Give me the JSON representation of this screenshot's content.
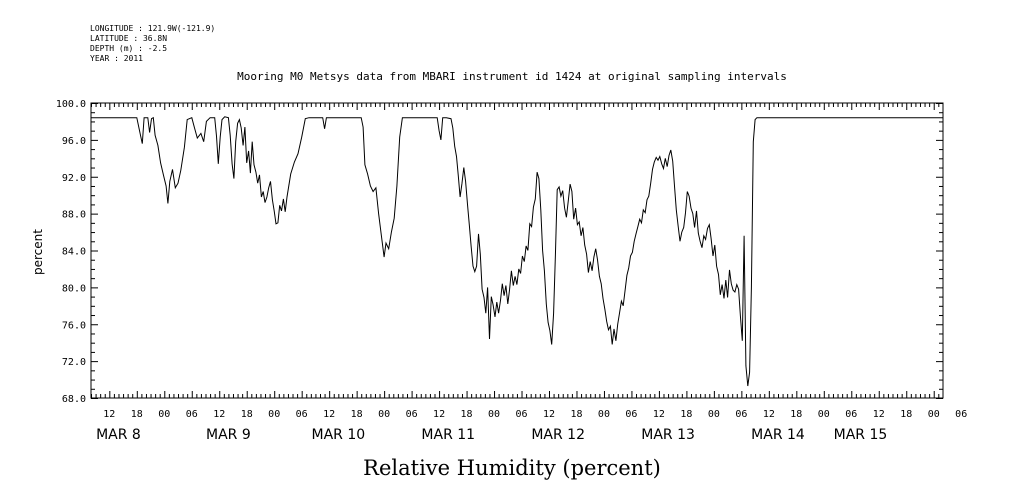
{
  "meta": {
    "longitude": "LONGITUDE : 121.9W(-121.9)",
    "latitude": "LATITUDE : 36.8N",
    "depth": "DEPTH (m) : -2.5",
    "year": "YEAR : 2011"
  },
  "chart_data": {
    "type": "line",
    "title": "Mooring M0 Metsys data from MBARI instrument id 1424 at original sampling intervals",
    "xlabel": "Relative Humidity (percent)",
    "ylabel": "percent",
    "ylim": [
      68,
      100
    ],
    "yticks": [
      "68.0",
      "72.0",
      "76.0",
      "80.0",
      "84.0",
      "88.0",
      "92.0",
      "96.0",
      "100.0"
    ],
    "xlim_hours": [
      0,
      186
    ],
    "hour_ticks": [
      {
        "h": 4,
        "label": "12"
      },
      {
        "h": 10,
        "label": "18"
      },
      {
        "h": 16,
        "label": "00"
      },
      {
        "h": 22,
        "label": "06"
      },
      {
        "h": 28,
        "label": "12"
      },
      {
        "h": 34,
        "label": "18"
      },
      {
        "h": 40,
        "label": "00"
      },
      {
        "h": 46,
        "label": "06"
      },
      {
        "h": 52,
        "label": "12"
      },
      {
        "h": 58,
        "label": "18"
      },
      {
        "h": 64,
        "label": "00"
      },
      {
        "h": 70,
        "label": "06"
      },
      {
        "h": 76,
        "label": "12"
      },
      {
        "h": 82,
        "label": "18"
      },
      {
        "h": 88,
        "label": "00"
      },
      {
        "h": 94,
        "label": "06"
      },
      {
        "h": 100,
        "label": "12"
      },
      {
        "h": 106,
        "label": "18"
      },
      {
        "h": 112,
        "label": "00"
      },
      {
        "h": 118,
        "label": "06"
      },
      {
        "h": 124,
        "label": "12"
      },
      {
        "h": 130,
        "label": "18"
      },
      {
        "h": 136,
        "label": "00"
      },
      {
        "h": 142,
        "label": "06"
      },
      {
        "h": 148,
        "label": "12"
      },
      {
        "h": 154,
        "label": "18"
      },
      {
        "h": 160,
        "label": "00"
      },
      {
        "h": 166,
        "label": "06"
      },
      {
        "h": 172,
        "label": "12"
      },
      {
        "h": 178,
        "label": "18"
      },
      {
        "h": 184,
        "label": "00"
      },
      {
        "h": 190,
        "label": "06"
      }
    ],
    "day_labels": [
      {
        "h": 6,
        "label": "MAR  8"
      },
      {
        "h": 30,
        "label": "MAR  9"
      },
      {
        "h": 54,
        "label": "MAR 10"
      },
      {
        "h": 78,
        "label": "MAR 11"
      },
      {
        "h": 102,
        "label": "MAR 12"
      },
      {
        "h": 126,
        "label": "MAR 13"
      },
      {
        "h": 150,
        "label": "MAR 14"
      },
      {
        "h": 168,
        "label": "MAR 15"
      }
    ],
    "series": [
      {
        "points": [
          [
            0.0,
            98.4
          ],
          [
            10.0,
            98.4
          ],
          [
            10.8,
            96.5
          ],
          [
            11.2,
            95.6
          ],
          [
            11.6,
            98.4
          ],
          [
            12.4,
            98.4
          ],
          [
            12.8,
            96.8
          ],
          [
            13.2,
            98.3
          ],
          [
            13.6,
            98.4
          ],
          [
            14.0,
            96.5
          ],
          [
            14.6,
            95.4
          ],
          [
            15.2,
            93.5
          ],
          [
            15.8,
            92.2
          ],
          [
            16.4,
            91.0
          ],
          [
            16.8,
            89.1
          ],
          [
            17.2,
            91.5
          ],
          [
            17.8,
            92.8
          ],
          [
            18.4,
            90.8
          ],
          [
            19.0,
            91.3
          ],
          [
            19.6,
            92.7
          ],
          [
            20.4,
            95.2
          ],
          [
            21.0,
            98.2
          ],
          [
            22.0,
            98.4
          ],
          [
            22.6,
            97.3
          ],
          [
            23.2,
            96.2
          ],
          [
            24.0,
            96.7
          ],
          [
            24.6,
            95.8
          ],
          [
            25.2,
            98.0
          ],
          [
            26.0,
            98.4
          ],
          [
            27.0,
            98.4
          ],
          [
            27.4,
            96.4
          ],
          [
            27.8,
            93.4
          ],
          [
            28.2,
            96.3
          ],
          [
            28.6,
            98.2
          ],
          [
            29.2,
            98.5
          ],
          [
            30.0,
            98.4
          ],
          [
            30.4,
            96.5
          ],
          [
            30.8,
            93.4
          ],
          [
            31.2,
            91.8
          ],
          [
            31.6,
            95.8
          ],
          [
            32.0,
            97.8
          ],
          [
            32.4,
            98.2
          ],
          [
            32.8,
            97.3
          ],
          [
            33.2,
            95.4
          ],
          [
            33.6,
            97.4
          ],
          [
            34.0,
            93.5
          ],
          [
            34.4,
            94.8
          ],
          [
            34.8,
            92.4
          ],
          [
            35.2,
            95.8
          ],
          [
            35.6,
            93.3
          ],
          [
            36.0,
            92.5
          ],
          [
            36.4,
            91.3
          ],
          [
            36.8,
            92.2
          ],
          [
            37.2,
            89.8
          ],
          [
            37.6,
            90.4
          ],
          [
            38.0,
            89.2
          ],
          [
            38.4,
            89.8
          ],
          [
            38.8,
            90.8
          ],
          [
            39.2,
            91.5
          ],
          [
            39.6,
            89.5
          ],
          [
            40.0,
            88.3
          ],
          [
            40.4,
            86.9
          ],
          [
            40.8,
            87.0
          ],
          [
            41.2,
            88.9
          ],
          [
            41.6,
            88.3
          ],
          [
            42.0,
            89.6
          ],
          [
            42.4,
            88.2
          ],
          [
            42.8,
            89.8
          ],
          [
            43.6,
            92.3
          ],
          [
            44.4,
            93.6
          ],
          [
            45.2,
            94.5
          ],
          [
            46.0,
            96.3
          ],
          [
            46.8,
            98.3
          ],
          [
            47.6,
            98.4
          ],
          [
            50.6,
            98.4
          ],
          [
            51.0,
            97.2
          ],
          [
            51.4,
            98.4
          ],
          [
            52.0,
            98.4
          ],
          [
            59.0,
            98.4
          ],
          [
            59.4,
            97.4
          ],
          [
            59.8,
            93.3
          ],
          [
            60.4,
            92.3
          ],
          [
            61.0,
            91.0
          ],
          [
            61.6,
            90.4
          ],
          [
            62.2,
            90.8
          ],
          [
            62.8,
            88.0
          ],
          [
            63.4,
            85.6
          ],
          [
            64.0,
            83.3
          ],
          [
            64.4,
            84.8
          ],
          [
            65.0,
            84.2
          ],
          [
            65.6,
            86.0
          ],
          [
            66.2,
            87.5
          ],
          [
            66.8,
            91.0
          ],
          [
            67.4,
            96.3
          ],
          [
            68.0,
            98.4
          ],
          [
            75.6,
            98.4
          ],
          [
            76.0,
            97.0
          ],
          [
            76.4,
            96.0
          ],
          [
            76.8,
            98.4
          ],
          [
            77.6,
            98.4
          ],
          [
            78.6,
            98.3
          ],
          [
            79.0,
            97.3
          ],
          [
            79.4,
            95.3
          ],
          [
            79.8,
            94.2
          ],
          [
            80.2,
            92.1
          ],
          [
            80.6,
            89.8
          ],
          [
            81.0,
            91.3
          ],
          [
            81.4,
            93.0
          ],
          [
            81.8,
            91.5
          ],
          [
            82.2,
            89.0
          ],
          [
            82.6,
            86.8
          ],
          [
            83.0,
            84.5
          ],
          [
            83.4,
            82.3
          ],
          [
            83.8,
            81.7
          ],
          [
            84.2,
            82.3
          ],
          [
            84.6,
            85.8
          ],
          [
            85.0,
            83.6
          ],
          [
            85.4,
            79.8
          ],
          [
            85.8,
            78.9
          ],
          [
            86.2,
            77.2
          ],
          [
            86.6,
            80.0
          ],
          [
            87.0,
            74.4
          ],
          [
            87.4,
            79.0
          ],
          [
            87.8,
            78.1
          ],
          [
            88.2,
            76.8
          ],
          [
            88.6,
            78.4
          ],
          [
            89.0,
            77.2
          ],
          [
            89.4,
            78.6
          ],
          [
            89.8,
            80.4
          ],
          [
            90.2,
            79.1
          ],
          [
            90.6,
            80.2
          ],
          [
            91.0,
            78.2
          ],
          [
            91.4,
            79.8
          ],
          [
            91.8,
            81.8
          ],
          [
            92.2,
            80.2
          ],
          [
            92.6,
            81.2
          ],
          [
            93.0,
            80.3
          ],
          [
            93.4,
            82.0
          ],
          [
            93.8,
            81.5
          ],
          [
            94.2,
            83.4
          ],
          [
            94.6,
            82.8
          ],
          [
            95.0,
            84.5
          ],
          [
            95.4,
            84.0
          ],
          [
            95.8,
            86.9
          ],
          [
            96.2,
            86.6
          ],
          [
            96.6,
            88.7
          ],
          [
            97.0,
            89.6
          ],
          [
            97.4,
            92.5
          ],
          [
            97.8,
            91.8
          ],
          [
            98.2,
            88.4
          ],
          [
            98.6,
            84.0
          ],
          [
            99.0,
            81.8
          ],
          [
            99.4,
            78.2
          ],
          [
            99.8,
            76.2
          ],
          [
            100.2,
            75.3
          ],
          [
            100.6,
            73.8
          ],
          [
            101.0,
            77.2
          ],
          [
            101.4,
            83.5
          ],
          [
            101.8,
            90.6
          ],
          [
            102.2,
            90.9
          ],
          [
            102.6,
            89.9
          ],
          [
            103.0,
            90.5
          ],
          [
            103.4,
            88.6
          ],
          [
            103.8,
            87.6
          ],
          [
            104.2,
            89.3
          ],
          [
            104.6,
            91.2
          ],
          [
            105.0,
            90.4
          ],
          [
            105.4,
            87.4
          ],
          [
            105.8,
            88.6
          ],
          [
            106.2,
            86.8
          ],
          [
            106.6,
            87.1
          ],
          [
            107.0,
            85.6
          ],
          [
            107.4,
            86.5
          ],
          [
            107.8,
            84.6
          ],
          [
            108.2,
            83.6
          ],
          [
            108.6,
            81.6
          ],
          [
            109.0,
            82.8
          ],
          [
            109.4,
            81.8
          ],
          [
            109.8,
            83.3
          ],
          [
            110.2,
            84.2
          ],
          [
            110.6,
            83.0
          ],
          [
            111.0,
            81.2
          ],
          [
            111.4,
            80.4
          ],
          [
            111.8,
            78.8
          ],
          [
            112.2,
            77.6
          ],
          [
            112.6,
            76.3
          ],
          [
            113.0,
            75.4
          ],
          [
            113.4,
            75.8
          ],
          [
            113.8,
            73.8
          ],
          [
            114.2,
            75.5
          ],
          [
            114.6,
            74.2
          ],
          [
            115.0,
            76.0
          ],
          [
            115.4,
            77.2
          ],
          [
            115.8,
            78.5
          ],
          [
            116.2,
            78.0
          ],
          [
            116.6,
            79.6
          ],
          [
            117.0,
            81.3
          ],
          [
            117.4,
            82.1
          ],
          [
            117.8,
            83.4
          ],
          [
            118.2,
            83.8
          ],
          [
            118.6,
            85.0
          ],
          [
            119.0,
            85.8
          ],
          [
            119.4,
            86.6
          ],
          [
            119.8,
            87.4
          ],
          [
            120.2,
            87.0
          ],
          [
            120.6,
            88.4
          ],
          [
            121.0,
            88.1
          ],
          [
            121.4,
            89.5
          ],
          [
            121.8,
            89.9
          ],
          [
            122.2,
            91.3
          ],
          [
            122.6,
            92.8
          ],
          [
            123.0,
            93.6
          ],
          [
            123.4,
            94.1
          ],
          [
            123.8,
            93.8
          ],
          [
            124.2,
            94.2
          ],
          [
            124.6,
            93.4
          ],
          [
            125.0,
            92.9
          ],
          [
            125.4,
            94.0
          ],
          [
            125.8,
            93.1
          ],
          [
            126.2,
            94.3
          ],
          [
            126.6,
            94.9
          ],
          [
            127.0,
            93.7
          ],
          [
            127.4,
            91.0
          ],
          [
            127.8,
            88.4
          ],
          [
            128.2,
            86.6
          ],
          [
            128.6,
            85.0
          ],
          [
            129.0,
            86.0
          ],
          [
            129.4,
            86.5
          ],
          [
            129.8,
            88.1
          ],
          [
            130.2,
            90.4
          ],
          [
            130.6,
            89.9
          ],
          [
            131.0,
            88.6
          ],
          [
            131.4,
            88.0
          ],
          [
            131.8,
            86.5
          ],
          [
            132.2,
            88.3
          ],
          [
            132.6,
            85.9
          ],
          [
            133.0,
            85.0
          ],
          [
            133.4,
            84.3
          ],
          [
            133.8,
            85.6
          ],
          [
            134.2,
            85.2
          ],
          [
            134.6,
            86.4
          ],
          [
            135.0,
            86.8
          ],
          [
            135.4,
            85.3
          ],
          [
            135.8,
            83.4
          ],
          [
            136.2,
            84.6
          ],
          [
            136.6,
            82.3
          ],
          [
            137.0,
            81.4
          ],
          [
            137.4,
            79.2
          ],
          [
            137.8,
            80.3
          ],
          [
            138.2,
            78.8
          ],
          [
            138.6,
            80.8
          ],
          [
            139.0,
            78.9
          ],
          [
            139.4,
            81.9
          ],
          [
            139.8,
            80.4
          ],
          [
            140.2,
            79.7
          ],
          [
            140.6,
            79.5
          ],
          [
            141.0,
            80.3
          ],
          [
            141.4,
            79.8
          ],
          [
            141.8,
            76.9
          ],
          [
            142.2,
            74.2
          ],
          [
            142.6,
            85.6
          ],
          [
            143.0,
            71.5
          ],
          [
            143.4,
            69.3
          ],
          [
            143.8,
            70.8
          ],
          [
            144.2,
            80.0
          ],
          [
            144.6,
            95.8
          ],
          [
            145.0,
            98.2
          ],
          [
            145.4,
            98.4
          ],
          [
            186.0,
            98.4
          ]
        ]
      }
    ]
  }
}
